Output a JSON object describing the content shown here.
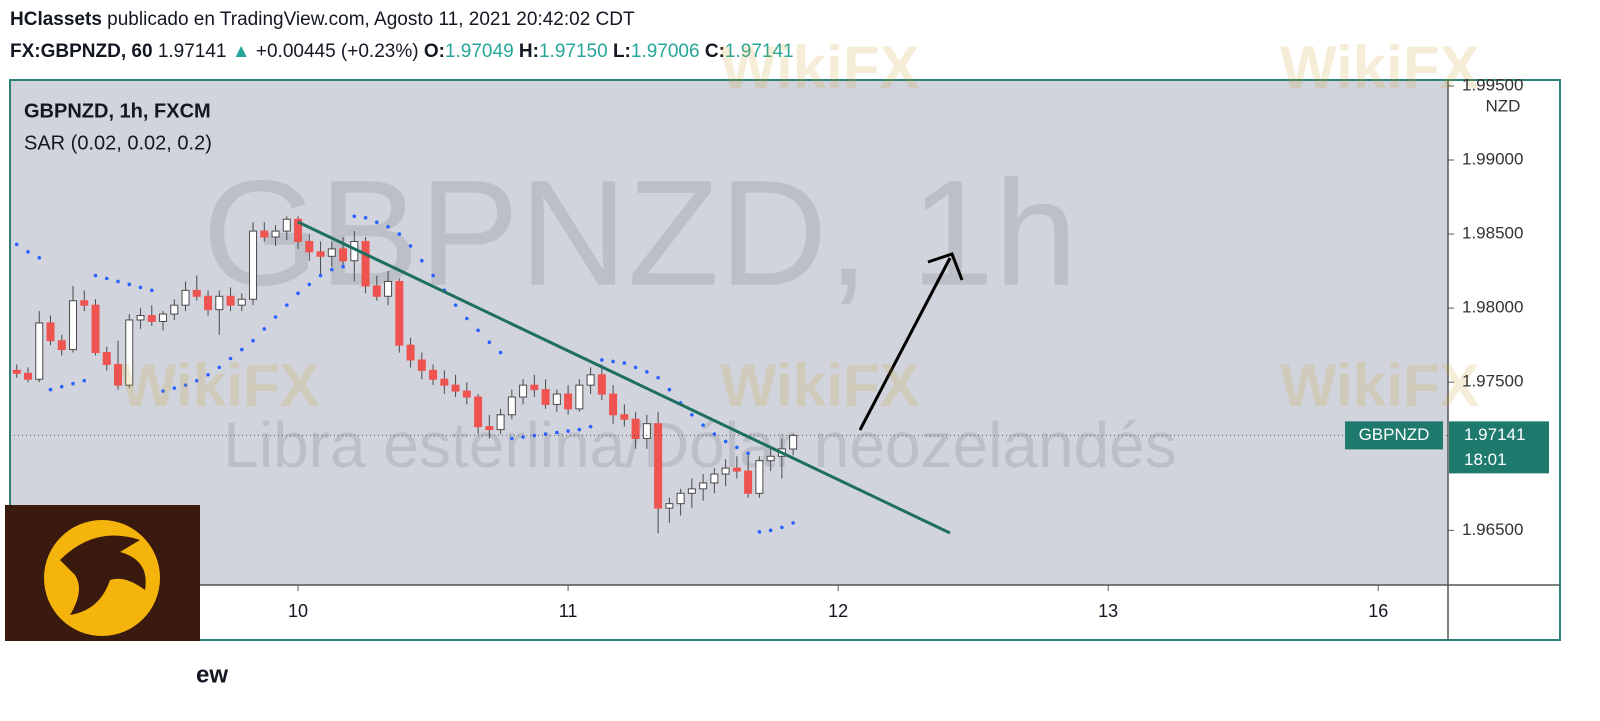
{
  "header": {
    "author": "HClassets",
    "published": "publicado en TradingView.com, Agosto 11, 2021 20:42:02 CDT",
    "symbol": "FX:GBPNZD, 60",
    "price": "1.97141",
    "arrow": "▲",
    "change": "+0.00445 (+0.23%)",
    "o_label": "O:",
    "o": "1.97049",
    "h_label": "H:",
    "h": "1.97150",
    "l_label": "L:",
    "l": "1.97006",
    "c_label": "C:",
    "c": "1.97141"
  },
  "watermark": {
    "brand": "WikiFX",
    "symbol": "GBPNZD, 1h",
    "description": "Libra esterlina/Dólar neozelandés",
    "footer": "ew"
  },
  "chart_data": {
    "type": "candlestick",
    "title": "GBPNZD, 1h, FXCM",
    "indicator": "SAR (0.02, 0.02, 0.2)",
    "y_unit": "NZD",
    "up_color": "#ffffff",
    "down_color": "#ef5350",
    "sar_color": "#2962ff",
    "x": [
      -25,
      -24,
      -23,
      -22,
      -21,
      -20,
      -19,
      -18,
      -17,
      -16,
      -15,
      -14,
      -13,
      -12,
      -11,
      -10,
      -9,
      -8,
      -7,
      -6,
      -5,
      -4,
      -3,
      -2,
      -1,
      0,
      1,
      2,
      3,
      4,
      5,
      6,
      7,
      8,
      9,
      10,
      11,
      12,
      13,
      14,
      15,
      16,
      17,
      18,
      19,
      20,
      21,
      22,
      23,
      24,
      25,
      26,
      27,
      28,
      29,
      30,
      31,
      32,
      33,
      34,
      35,
      36,
      37,
      38,
      39,
      40,
      41,
      42,
      43,
      44
    ],
    "open": [
      1.9758,
      1.9756,
      1.9752,
      1.979,
      1.9778,
      1.9772,
      1.9805,
      1.9802,
      1.977,
      1.9762,
      1.9748,
      1.9792,
      1.9795,
      1.9791,
      1.9796,
      1.9802,
      1.9812,
      1.9808,
      1.9799,
      1.9808,
      1.9802,
      1.9806,
      1.9852,
      1.9848,
      1.9852,
      1.986,
      1.9845,
      1.9838,
      1.9835,
      1.984,
      1.9832,
      1.9845,
      1.9815,
      1.9808,
      1.9818,
      1.9775,
      1.9765,
      1.9758,
      1.9752,
      1.9748,
      1.9744,
      1.974,
      1.972,
      1.9718,
      1.9728,
      1.974,
      1.9748,
      1.9745,
      1.9735,
      1.9742,
      1.9732,
      1.9748,
      1.9755,
      1.9742,
      1.9728,
      1.9725,
      1.9712,
      1.9722,
      1.9665,
      1.9668,
      1.9675,
      1.9678,
      1.9682,
      1.9688,
      1.9692,
      1.969,
      1.9675,
      1.9697,
      1.97,
      1.97049
    ],
    "high": [
      1.9762,
      1.976,
      1.9798,
      1.9795,
      1.9782,
      1.9815,
      1.9812,
      1.9806,
      1.9774,
      1.9778,
      1.9796,
      1.98,
      1.9802,
      1.9798,
      1.9806,
      1.9818,
      1.9822,
      1.9812,
      1.9812,
      1.9814,
      1.981,
      1.9858,
      1.9858,
      1.9856,
      1.9862,
      1.9862,
      1.985,
      1.9845,
      1.9845,
      1.9848,
      1.9852,
      1.9848,
      1.9822,
      1.9825,
      1.982,
      1.978,
      1.977,
      1.9762,
      1.9758,
      1.9755,
      1.975,
      1.9742,
      1.9728,
      1.9732,
      1.9745,
      1.9752,
      1.9755,
      1.9752,
      1.9745,
      1.9748,
      1.9752,
      1.976,
      1.9762,
      1.9748,
      1.9735,
      1.973,
      1.9728,
      1.973,
      1.9672,
      1.9678,
      1.9685,
      1.9688,
      1.9692,
      1.9698,
      1.97,
      1.9702,
      1.97,
      1.9705,
      1.9712,
      1.9715
    ],
    "low": [
      1.9753,
      1.975,
      1.975,
      1.9775,
      1.9768,
      1.977,
      1.9798,
      1.9768,
      1.9758,
      1.9745,
      1.9746,
      1.9786,
      1.9788,
      1.9785,
      1.9792,
      1.9798,
      1.9805,
      1.9795,
      1.9782,
      1.9798,
      1.9798,
      1.9802,
      1.9845,
      1.9842,
      1.9846,
      1.984,
      1.9832,
      1.9822,
      1.9828,
      1.9828,
      1.9818,
      1.981,
      1.9805,
      1.9802,
      1.977,
      1.976,
      1.9752,
      1.9748,
      1.9742,
      1.974,
      1.9735,
      1.9715,
      1.9712,
      1.9715,
      1.9725,
      1.9735,
      1.974,
      1.9732,
      1.973,
      1.9728,
      1.973,
      1.9742,
      1.9738,
      1.9722,
      1.972,
      1.9705,
      1.9705,
      1.9648,
      1.9655,
      1.966,
      1.9665,
      1.967,
      1.9675,
      1.968,
      1.9685,
      1.9672,
      1.9672,
      1.969,
      1.9685,
      1.97006
    ],
    "close": [
      1.9756,
      1.9752,
      1.979,
      1.9778,
      1.9772,
      1.9805,
      1.9802,
      1.977,
      1.9762,
      1.9748,
      1.9792,
      1.9795,
      1.9791,
      1.9796,
      1.9802,
      1.9812,
      1.9808,
      1.9799,
      1.9808,
      1.9802,
      1.9806,
      1.9852,
      1.9848,
      1.9852,
      1.986,
      1.9845,
      1.9838,
      1.9835,
      1.984,
      1.9832,
      1.9845,
      1.9815,
      1.9808,
      1.9818,
      1.9775,
      1.9765,
      1.9758,
      1.9752,
      1.9748,
      1.9744,
      1.974,
      1.972,
      1.9718,
      1.9728,
      1.974,
      1.9748,
      1.9745,
      1.9735,
      1.9742,
      1.9732,
      1.9748,
      1.9755,
      1.9742,
      1.9728,
      1.9725,
      1.9712,
      1.9722,
      1.9665,
      1.9668,
      1.9675,
      1.9678,
      1.9682,
      1.9688,
      1.9692,
      1.969,
      1.9675,
      1.9697,
      1.97,
      1.9705,
      1.97141
    ],
    "sar": [
      1.9843,
      1.9838,
      1.9834,
      1.9745,
      1.9747,
      1.9749,
      1.9751,
      1.9822,
      1.982,
      1.9818,
      1.9816,
      1.9814,
      1.9812,
      1.9744,
      1.9746,
      1.9748,
      1.9751,
      1.9755,
      1.976,
      1.9766,
      1.9772,
      1.9778,
      1.9786,
      1.9794,
      1.9802,
      1.981,
      1.9816,
      1.9822,
      1.9826,
      1.9828,
      1.9862,
      1.9861,
      1.9858,
      1.9855,
      1.985,
      1.9842,
      1.9832,
      1.9822,
      1.9812,
      1.9802,
      1.9793,
      1.9785,
      1.9777,
      1.977,
      1.9712,
      1.9713,
      1.9714,
      1.9715,
      1.9716,
      1.9717,
      1.9718,
      1.972,
      1.9765,
      1.9764,
      1.9763,
      1.976,
      1.9757,
      1.9753,
      1.9745,
      1.9736,
      1.9728,
      1.9721,
      1.9715,
      1.971,
      1.9706,
      1.9702,
      1.9649,
      1.965,
      1.9652,
      1.9655
    ],
    "xlim": [
      -25.6,
      102.2
    ],
    "xticks": [
      {
        "value": 0,
        "label": "10"
      },
      {
        "value": 24,
        "label": "11"
      },
      {
        "value": 48,
        "label": "12"
      },
      {
        "value": 72,
        "label": "13"
      },
      {
        "value": 96,
        "label": "16"
      }
    ],
    "ylim": [
      1.96131,
      1.9954
    ],
    "yticks": [
      {
        "value": 1.965,
        "label": "1.96500"
      },
      {
        "value": 1.975,
        "label": "1.97500"
      },
      {
        "value": 1.98,
        "label": "1.98000"
      },
      {
        "value": 1.985,
        "label": "1.98500"
      },
      {
        "value": 1.99,
        "label": "1.99000"
      },
      {
        "value": 1.995,
        "label": "1.99500"
      }
    ],
    "price_tag": {
      "name": "GBPNZD",
      "countdown": "18:01"
    }
  }
}
